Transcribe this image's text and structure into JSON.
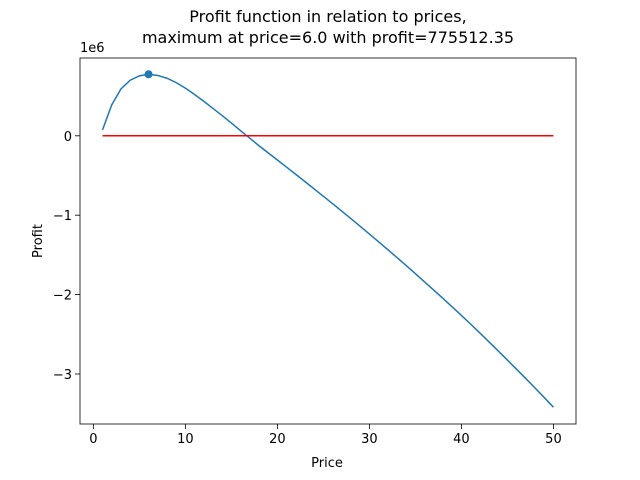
{
  "chart_data": {
    "type": "line",
    "title": [
      "Profit function in relation to prices,",
      "maximum at price=6.0 with profit=775512.35"
    ],
    "x_label": "Price",
    "y_label": "Profit",
    "y_offset_label": "1e6",
    "xlim": [
      -1.45,
      52.45
    ],
    "ylim": [
      -3630000,
      980000
    ],
    "xticks": [
      0,
      10,
      20,
      30,
      40,
      50
    ],
    "yticks": [
      {
        "value": -3000000,
        "label": "−3"
      },
      {
        "value": -2000000,
        "label": "−2"
      },
      {
        "value": -1000000,
        "label": "−1"
      },
      0
    ],
    "series": [
      {
        "color": "#1f77b4",
        "x": [
          1,
          2,
          3,
          4,
          5,
          6,
          7,
          8,
          9,
          10,
          11,
          12,
          13,
          14,
          15,
          16,
          17,
          18,
          19,
          20,
          21,
          22,
          23,
          24,
          25,
          26,
          27,
          28,
          29,
          30,
          31,
          32,
          33,
          34,
          35,
          36,
          37,
          38,
          39,
          40,
          41,
          42,
          43,
          44,
          45,
          46,
          47,
          48,
          49,
          50
        ],
        "values": [
          75000,
          390000,
          590000,
          700000,
          755000,
          775512.35,
          760000,
          725000,
          670000,
          600000,
          520000,
          435000,
          345000,
          255000,
          160000,
          65000,
          -30000,
          -125000,
          -215000,
          -305000,
          -395000,
          -486000,
          -577000,
          -669000,
          -762000,
          -855000,
          -949000,
          -1044000,
          -1140000,
          -1237000,
          -1335000,
          -1434000,
          -1534000,
          -1635000,
          -1737000,
          -1840000,
          -1944000,
          -2049000,
          -2155000,
          -2262000,
          -2372000,
          -2483000,
          -2596000,
          -2710000,
          -2825000,
          -2941000,
          -3058000,
          -3177000,
          -3297000,
          -3418000
        ]
      },
      {
        "color": "#ff0000",
        "x": [
          1,
          50
        ],
        "values": [
          0,
          0
        ]
      }
    ],
    "points": [
      {
        "color": "#1f77b4",
        "x": 6,
        "value": 775512.35
      }
    ]
  }
}
